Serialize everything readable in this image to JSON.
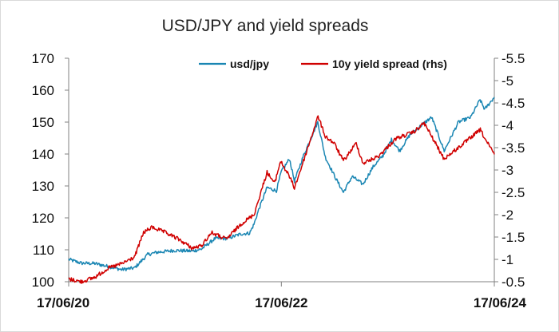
{
  "chart_data": {
    "type": "line",
    "title": "USD/JPY and yield spreads",
    "xlabel": "",
    "ylabel": "",
    "x_tick_labels": [
      "17/06/20",
      "17/06/22",
      "17/06/24"
    ],
    "x_range": [
      "2020-06-17",
      "2024-06-17"
    ],
    "ylim": [
      100,
      170
    ],
    "y_ticks": [
      100,
      110,
      120,
      130,
      140,
      150,
      160,
      170
    ],
    "y2lim": [
      -0.5,
      -5.5
    ],
    "y2_reversed": true,
    "y2_ticks": [
      -0.5,
      -1,
      -1.5,
      -2,
      -2.5,
      -3,
      -3.5,
      -4,
      -4.5,
      -5,
      -5.5
    ],
    "grid": false,
    "legend_position": "top-right",
    "series": [
      {
        "name": "usd/jpy",
        "axis": "left",
        "color": "#1a86b3",
        "points": [
          [
            "2020-06-17",
            107.0
          ],
          [
            "2020-07-31",
            105.8
          ],
          [
            "2020-09-15",
            105.7
          ],
          [
            "2020-10-30",
            104.8
          ],
          [
            "2020-12-15",
            103.8
          ],
          [
            "2021-01-29",
            104.3
          ],
          [
            "2021-03-15",
            108.5
          ],
          [
            "2021-04-15",
            109.2
          ],
          [
            "2021-06-15",
            109.8
          ],
          [
            "2021-08-15",
            109.6
          ],
          [
            "2021-09-15",
            110.2
          ],
          [
            "2021-11-01",
            113.5
          ],
          [
            "2021-12-15",
            113.6
          ],
          [
            "2022-01-31",
            115.0
          ],
          [
            "2022-02-28",
            115.2
          ],
          [
            "2022-03-15",
            118.0
          ],
          [
            "2022-03-31",
            122.5
          ],
          [
            "2022-04-29",
            129.5
          ],
          [
            "2022-05-31",
            128.5
          ],
          [
            "2022-06-17",
            134.5
          ],
          [
            "2022-07-15",
            138.5
          ],
          [
            "2022-08-01",
            131.5
          ],
          [
            "2022-09-01",
            139.5
          ],
          [
            "2022-10-20",
            150.0
          ],
          [
            "2022-11-15",
            139.0
          ],
          [
            "2022-12-20",
            132.5
          ],
          [
            "2023-01-16",
            128.0
          ],
          [
            "2023-02-15",
            133.0
          ],
          [
            "2023-03-24",
            130.5
          ],
          [
            "2023-04-28",
            136.0
          ],
          [
            "2023-06-01",
            139.5
          ],
          [
            "2023-06-30",
            144.5
          ],
          [
            "2023-07-28",
            141.0
          ],
          [
            "2023-09-01",
            146.0
          ],
          [
            "2023-10-31",
            150.5
          ],
          [
            "2023-11-15",
            151.5
          ],
          [
            "2023-12-28",
            141.0
          ],
          [
            "2024-02-15",
            150.0
          ],
          [
            "2024-03-28",
            151.5
          ],
          [
            "2024-04-29",
            157.0
          ],
          [
            "2024-05-15",
            154.0
          ],
          [
            "2024-06-17",
            157.8
          ]
        ]
      },
      {
        "name": "10y yield spread (rhs)",
        "axis": "right",
        "color": "#d00000",
        "points": [
          [
            "2020-06-17",
            -0.56
          ],
          [
            "2020-07-31",
            -0.5
          ],
          [
            "2020-09-15",
            -0.6
          ],
          [
            "2020-10-30",
            -0.8
          ],
          [
            "2020-12-15",
            -0.9
          ],
          [
            "2021-01-29",
            -1.05
          ],
          [
            "2021-03-01",
            -1.6
          ],
          [
            "2021-03-31",
            -1.72
          ],
          [
            "2021-05-15",
            -1.6
          ],
          [
            "2021-06-30",
            -1.45
          ],
          [
            "2021-08-15",
            -1.25
          ],
          [
            "2021-09-15",
            -1.3
          ],
          [
            "2021-10-20",
            -1.6
          ],
          [
            "2021-12-10",
            -1.45
          ],
          [
            "2022-01-31",
            -1.8
          ],
          [
            "2022-03-15",
            -2.0
          ],
          [
            "2022-04-29",
            -2.95
          ],
          [
            "2022-05-25",
            -2.7
          ],
          [
            "2022-06-14",
            -3.2
          ],
          [
            "2022-07-15",
            -2.85
          ],
          [
            "2022-08-01",
            -2.6
          ],
          [
            "2022-09-01",
            -3.2
          ],
          [
            "2022-10-21",
            -4.2
          ],
          [
            "2022-11-15",
            -3.75
          ],
          [
            "2022-12-15",
            -3.6
          ],
          [
            "2023-01-16",
            -3.2
          ],
          [
            "2023-03-01",
            -3.6
          ],
          [
            "2023-03-24",
            -3.15
          ],
          [
            "2023-05-15",
            -3.3
          ],
          [
            "2023-07-15",
            -3.7
          ],
          [
            "2023-09-15",
            -3.85
          ],
          [
            "2023-10-20",
            -4.05
          ],
          [
            "2023-11-15",
            -3.75
          ],
          [
            "2023-12-27",
            -3.25
          ],
          [
            "2024-02-15",
            -3.5
          ],
          [
            "2024-04-30",
            -3.9
          ],
          [
            "2024-05-20",
            -3.65
          ],
          [
            "2024-06-17",
            -3.35
          ]
        ]
      }
    ]
  }
}
